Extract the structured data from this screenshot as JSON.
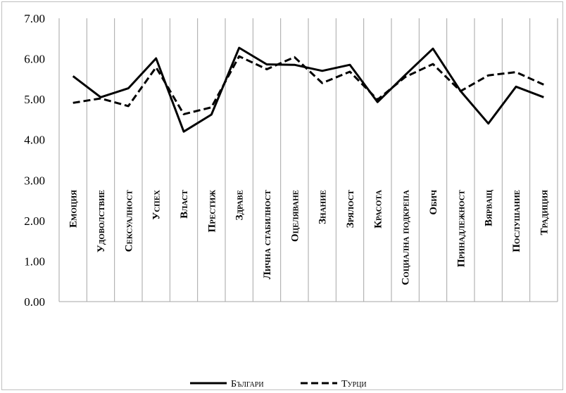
{
  "chart_data": {
    "type": "line",
    "categories": [
      "Емоция",
      "Удоволствие",
      "Сексуалност",
      "Успех",
      "Власт",
      "Престиж",
      "Здраве",
      "Лична стабилност",
      "Оцеляване",
      "Знание",
      "Зрялост",
      "Красота",
      "Социална подкрепа",
      "Обич",
      "Принадлежност",
      "Вярвaщ",
      "Послушание",
      "Традиция"
    ],
    "series": [
      {
        "name": "Българи",
        "style": "solid",
        "color": "#000000",
        "values": [
          5.57,
          5.05,
          5.27,
          6.01,
          4.2,
          4.62,
          6.27,
          5.86,
          5.85,
          5.7,
          5.85,
          4.93,
          5.6,
          6.25,
          5.2,
          4.4,
          5.31,
          5.05
        ]
      },
      {
        "name": "Турци",
        "style": "dashed",
        "color": "#000000",
        "values": [
          4.91,
          5.02,
          4.83,
          5.79,
          4.63,
          4.8,
          6.06,
          5.74,
          6.04,
          5.4,
          5.68,
          4.99,
          5.55,
          5.87,
          5.2,
          5.59,
          5.67,
          5.36
        ]
      }
    ],
    "yticks": [
      "0.00",
      "1.00",
      "2.00",
      "3.00",
      "4.00",
      "5.00",
      "6.00",
      "7.00"
    ],
    "ylim": [
      0,
      7
    ],
    "grid": "vertical",
    "legend": "bottom"
  }
}
